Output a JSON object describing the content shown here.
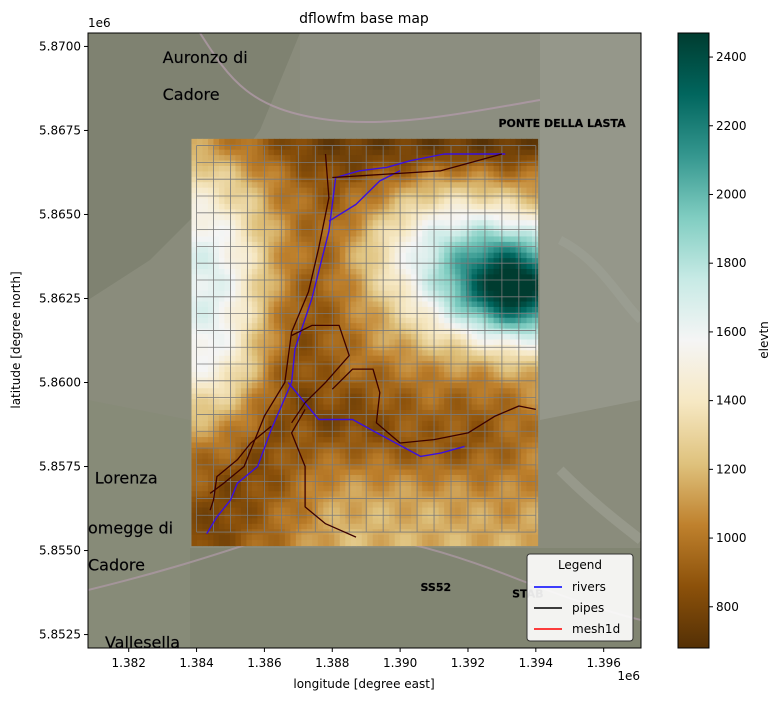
{
  "chart_data": {
    "type": "heatmap",
    "title": "dflowfm base map",
    "xlabel": "longitude [degree east]",
    "ylabel": "latitude [degree north]",
    "x_offset_label": "1e6",
    "y_offset_label": "1e6",
    "xlim": [
      1.3808,
      1.3971
    ],
    "ylim": [
      5.8521,
      5.8704
    ],
    "xticks": [
      1.382,
      1.384,
      1.386,
      1.388,
      1.39,
      1.392,
      1.394,
      1.396
    ],
    "xtick_labels": [
      "1.382",
      "1.384",
      "1.386",
      "1.388",
      "1.390",
      "1.392",
      "1.394",
      "1.396"
    ],
    "yticks": [
      5.8525,
      5.855,
      5.8575,
      5.86,
      5.8625,
      5.865,
      5.8675,
      5.87
    ],
    "ytick_labels": [
      "5.8525",
      "5.8550",
      "5.8575",
      "5.8600",
      "5.8625",
      "5.8650",
      "5.8675",
      "5.8700"
    ],
    "grid_extent": {
      "x": [
        1.38385,
        1.39405
      ],
      "y": [
        5.85515,
        5.86725
      ]
    },
    "mesh_extent": {
      "x": [
        1.384,
        1.394
      ],
      "y": [
        5.85555,
        5.86705
      ]
    },
    "mesh_cells": {
      "nx": 20,
      "ny": 23
    },
    "colorbar": {
      "label": "elevtn",
      "range": [
        680,
        2470
      ],
      "ticks": [
        800,
        1000,
        1200,
        1400,
        1600,
        1800,
        2000,
        2200,
        2400
      ],
      "tick_labels": [
        "800",
        "1000",
        "1200",
        "1400",
        "1600",
        "1800",
        "2000",
        "2200",
        "2400"
      ],
      "colormap": "BrBG"
    },
    "legend": {
      "title": "Legend",
      "placement": "lower right",
      "entries": [
        {
          "label": "rivers",
          "color": "#0000ff"
        },
        {
          "label": "pipes",
          "color": "#000000"
        },
        {
          "label": "mesh1d",
          "color": "#ff0000"
        }
      ]
    },
    "basemap_labels": [
      {
        "text": "Auronzo di",
        "x": 1.383,
        "y": 5.8695
      },
      {
        "text": "Cadore",
        "x": 1.383,
        "y": 5.8684
      },
      {
        "text": "PONTE DELLA LASTA",
        "x": 1.3929,
        "y": 5.8676
      },
      {
        "text": "Lorenza",
        "x": 1.381,
        "y": 5.857
      },
      {
        "text": "omegge di",
        "x": 1.3808,
        "y": 5.8555
      },
      {
        "text": "Cadore",
        "x": 1.3808,
        "y": 5.8544
      },
      {
        "text": "SS52",
        "x": 1.3906,
        "y": 5.8538
      },
      {
        "text": "STAB",
        "x": 1.3933,
        "y": 5.8536
      },
      {
        "text": "Vallesella",
        "x": 1.3813,
        "y": 5.8521
      }
    ],
    "series": [
      {
        "name": "rivers",
        "type": "line",
        "paths": [
          [
            [
              1.3881,
              5.8661
            ],
            [
              1.3879,
              5.8645
            ],
            [
              1.3874,
              5.8625
            ],
            [
              1.3869,
              5.861
            ],
            [
              1.3868,
              5.86
            ],
            [
              1.3862,
              5.8586
            ],
            [
              1.3858,
              5.8575
            ],
            [
              1.3852,
              5.857
            ],
            [
              1.385,
              5.8565
            ],
            [
              1.3846,
              5.856
            ],
            [
              1.3843,
              5.8555
            ]
          ],
          [
            [
              1.3881,
              5.8661
            ],
            [
              1.3888,
              5.8663
            ],
            [
              1.3896,
              5.8664
            ],
            [
              1.3903,
              5.8666
            ],
            [
              1.3913,
              5.8668
            ],
            [
              1.392,
              5.8668
            ],
            [
              1.3931,
              5.8668
            ]
          ],
          [
            [
              1.3867,
              5.86
            ],
            [
              1.3876,
              5.8589
            ],
            [
              1.3886,
              5.8589
            ],
            [
              1.3895,
              5.8584
            ],
            [
              1.3906,
              5.8578
            ],
            [
              1.3912,
              5.8579
            ],
            [
              1.3919,
              5.8581
            ]
          ],
          [
            [
              1.3879,
              5.8648
            ],
            [
              1.3887,
              5.8653
            ],
            [
              1.3894,
              5.866
            ],
            [
              1.39,
              5.8663
            ]
          ]
        ]
      },
      {
        "name": "pipes",
        "type": "line",
        "paths": [
          [
            [
              1.388,
              5.8661
            ],
            [
              1.3912,
              5.8663
            ],
            [
              1.393,
              5.8668
            ]
          ],
          [
            [
              1.3878,
              5.8668
            ],
            [
              1.3879,
              5.8655
            ],
            [
              1.3876,
              5.864
            ],
            [
              1.3873,
              5.8627
            ],
            [
              1.3868,
              5.8615
            ],
            [
              1.3866,
              5.86
            ],
            [
              1.386,
              5.859
            ],
            [
              1.3854,
              5.8575
            ],
            [
              1.3848,
              5.857
            ],
            [
              1.3844,
              5.8567
            ]
          ],
          [
            [
              1.3868,
              5.8614
            ],
            [
              1.3874,
              5.8617
            ],
            [
              1.3882,
              5.8617
            ],
            [
              1.3885,
              5.8608
            ],
            [
              1.3878,
              5.86
            ],
            [
              1.3872,
              5.8594
            ],
            [
              1.3868,
              5.8588
            ]
          ],
          [
            [
              1.388,
              5.8598
            ],
            [
              1.3886,
              5.8604
            ],
            [
              1.3892,
              5.8604
            ],
            [
              1.3894,
              5.8597
            ],
            [
              1.3893,
              5.8588
            ],
            [
              1.39,
              5.8582
            ],
            [
              1.391,
              5.8583
            ],
            [
              1.392,
              5.8585
            ],
            [
              1.3928,
              5.859
            ],
            [
              1.3935,
              5.8593
            ],
            [
              1.394,
              5.8592
            ]
          ],
          [
            [
              1.3872,
              5.8592
            ],
            [
              1.3868,
              5.8585
            ],
            [
              1.3872,
              5.8575
            ],
            [
              1.3872,
              5.8563
            ],
            [
              1.3878,
              5.8558
            ],
            [
              1.3887,
              5.8554
            ]
          ],
          [
            [
              1.3862,
              5.8587
            ],
            [
              1.3856,
              5.8582
            ],
            [
              1.3852,
              5.8577
            ],
            [
              1.3846,
              5.8572
            ],
            [
              1.3845,
              5.8565
            ],
            [
              1.3844,
              5.8562
            ]
          ]
        ]
      },
      {
        "name": "mesh1d",
        "type": "line",
        "paths": []
      }
    ]
  }
}
